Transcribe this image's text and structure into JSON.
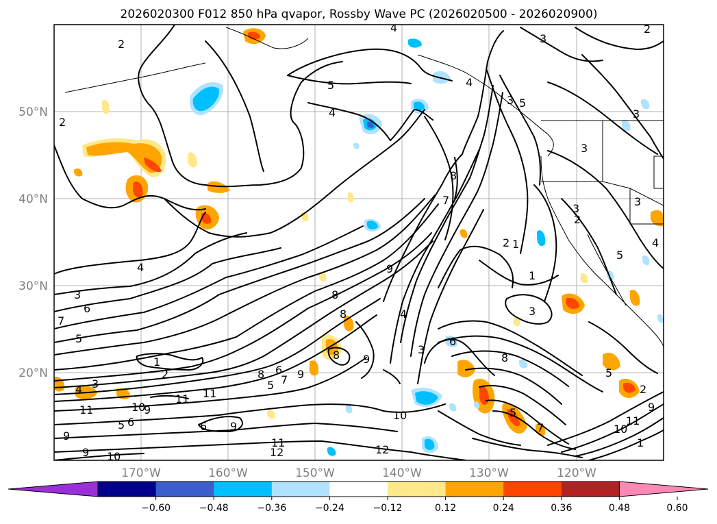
{
  "map": {
    "title": "2026020300 F012 850 hPa qvapor, Rossby Wave PC (2026020500 - 2026020900)",
    "lat_labels": [
      "50°N",
      "40°N",
      "30°N",
      "20°N"
    ],
    "lon_labels": [
      "170°W",
      "160°W",
      "150°W",
      "140°W",
      "130°W",
      "120°W"
    ],
    "extent": {
      "lon_min": -180,
      "lon_max": -110,
      "lat_min": 10,
      "lat_max": 60
    },
    "gridlines": true
  },
  "colorbar": {
    "ticks": [
      "−0.60",
      "−0.48",
      "−0.36",
      "−0.24",
      "−0.12",
      "0.12",
      "0.24",
      "0.36",
      "0.48",
      "0.60"
    ],
    "colors": [
      "#9b30d9",
      "#00008b",
      "#3a5fcd",
      "#00bfff",
      "#b0e2ff",
      "#ffffff",
      "#ffe88a",
      "#ffa500",
      "#ff4500",
      "#b22222",
      "#ff89b5"
    ],
    "extend": "both"
  },
  "contour_labels": [
    {
      "text": "2",
      "pos": "north-pacific-west"
    },
    {
      "text": "4",
      "pos": "top-center"
    },
    {
      "text": "2",
      "pos": "top-right"
    },
    {
      "text": "3",
      "pos": "top-right"
    },
    {
      "text": "5",
      "pos": "central-north"
    },
    {
      "text": "4",
      "pos": "central-north"
    },
    {
      "text": "2",
      "pos": "west-edge"
    },
    {
      "text": "8",
      "pos": "center"
    },
    {
      "text": "7",
      "pos": "center"
    },
    {
      "text": "3",
      "pos": "east"
    },
    {
      "text": "2",
      "pos": "west-coast"
    },
    {
      "text": "1",
      "pos": "east"
    },
    {
      "text": "1",
      "pos": "east"
    },
    {
      "text": "4",
      "pos": "west"
    },
    {
      "text": "9",
      "pos": "center"
    },
    {
      "text": "8",
      "pos": "center"
    },
    {
      "text": "8",
      "pos": "center"
    },
    {
      "text": "3",
      "pos": "west"
    },
    {
      "text": "6",
      "pos": "west"
    },
    {
      "text": "7",
      "pos": "west"
    },
    {
      "text": "5",
      "pos": "west"
    },
    {
      "text": "4",
      "pos": "center"
    },
    {
      "text": "3",
      "pos": "east"
    },
    {
      "text": "6",
      "pos": "east"
    },
    {
      "text": "3",
      "pos": "center-south"
    },
    {
      "text": "9",
      "pos": "center-south"
    },
    {
      "text": "8",
      "pos": "east-south"
    },
    {
      "text": "1",
      "pos": "west-south"
    },
    {
      "text": "2",
      "pos": "west-south"
    },
    {
      "text": "4",
      "pos": "west-south"
    },
    {
      "text": "3",
      "pos": "west-south"
    },
    {
      "text": "11",
      "pos": "south"
    },
    {
      "text": "11",
      "pos": "south"
    },
    {
      "text": "11",
      "pos": "south-west"
    },
    {
      "text": "10",
      "pos": "south-west"
    },
    {
      "text": "9",
      "pos": "south-west"
    },
    {
      "text": "5",
      "pos": "south-west"
    },
    {
      "text": "6",
      "pos": "south-west"
    },
    {
      "text": "6",
      "pos": "south"
    },
    {
      "text": "9",
      "pos": "south"
    },
    {
      "text": "9",
      "pos": "south-west"
    },
    {
      "text": "9",
      "pos": "south-west"
    },
    {
      "text": "10",
      "pos": "south-west"
    },
    {
      "text": "10",
      "pos": "south"
    },
    {
      "text": "11",
      "pos": "south"
    },
    {
      "text": "12",
      "pos": "south"
    },
    {
      "text": "12",
      "pos": "south"
    },
    {
      "text": "5",
      "pos": "south-east"
    },
    {
      "text": "7",
      "pos": "south-east"
    },
    {
      "text": "5",
      "pos": "east"
    },
    {
      "text": "2",
      "pos": "east"
    },
    {
      "text": "1",
      "pos": "south-east"
    },
    {
      "text": "11",
      "pos": "south-east"
    },
    {
      "text": "10",
      "pos": "south-east"
    },
    {
      "text": "9",
      "pos": "south-east"
    },
    {
      "text": "8",
      "pos": "center"
    },
    {
      "text": "6",
      "pos": "center"
    },
    {
      "text": "5",
      "pos": "center"
    },
    {
      "text": "9",
      "pos": "center"
    },
    {
      "text": "7",
      "pos": "center"
    },
    {
      "text": "8",
      "pos": "center"
    },
    {
      "text": "3",
      "pos": "north-east"
    },
    {
      "text": "3",
      "pos": "north-east"
    },
    {
      "text": "2",
      "pos": "north-east"
    },
    {
      "text": "3",
      "pos": "east"
    },
    {
      "text": "5",
      "pos": "east"
    },
    {
      "text": "4",
      "pos": "east"
    },
    {
      "text": "4",
      "pos": "north-east"
    },
    {
      "text": "5",
      "pos": "north-east"
    },
    {
      "text": "3",
      "pos": "north-east"
    }
  ]
}
